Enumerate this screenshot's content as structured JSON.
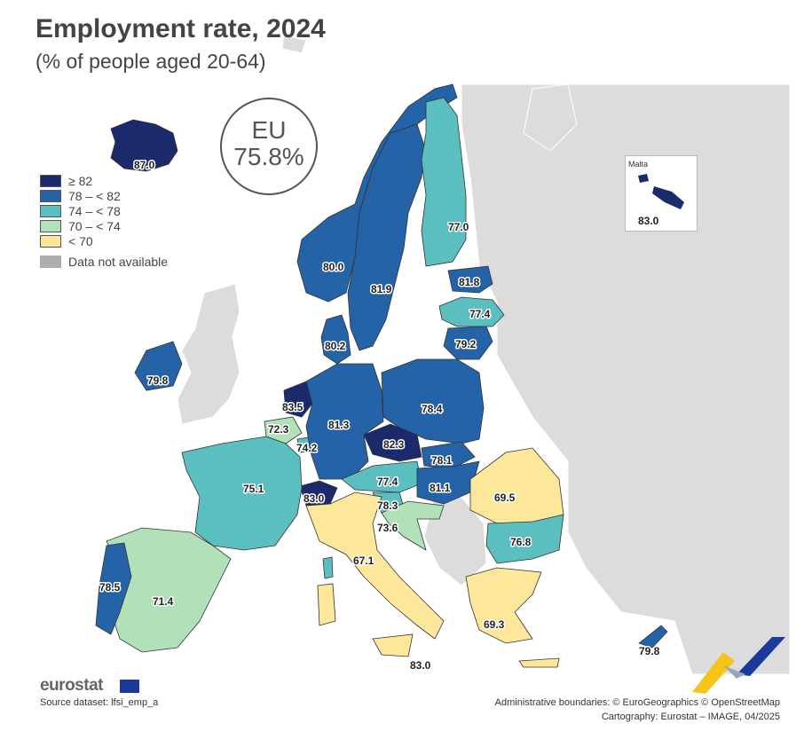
{
  "header": {
    "title": "Employment rate, 2024",
    "subtitle": "(% of people aged 20-64)"
  },
  "eu_total": {
    "label": "EU",
    "value": "75.8%"
  },
  "colors": {
    "ge82": "#1b2a6b",
    "78_82": "#2563a8",
    "74_78": "#5bbfbf",
    "70_74": "#b2e0b8",
    "lt70": "#fde79a",
    "na": "#adadad",
    "nonEU": "#dcdcdc",
    "sea": "#ffffff"
  },
  "legend": {
    "items": [
      {
        "label": "≥ 82",
        "color": "#1b2a6b"
      },
      {
        "label": "78 – < 82",
        "color": "#2563a8"
      },
      {
        "label": "74 – < 78",
        "color": "#5bbfbf"
      },
      {
        "label": "70 – < 74",
        "color": "#b2e0b8"
      },
      {
        "label": "< 70",
        "color": "#fde79a"
      }
    ],
    "na_label": "Data not available",
    "na_color": "#adadad"
  },
  "values": {
    "iceland": "87.0",
    "norway": "80.0",
    "sweden": "81.9",
    "finland": "77.0",
    "estonia": "81.8",
    "latvia": "77.4",
    "lithuania": "79.2",
    "denmark": "80.2",
    "ireland": "79.8",
    "netherlands": "83.5",
    "belgium": "72.3",
    "luxembourg": "74.2",
    "germany": "81.3",
    "poland": "78.4",
    "czechia": "82.3",
    "slovakia": "78.1",
    "austria": "77.4",
    "hungary": "81.1",
    "switzerland": "83.0",
    "slovenia": "78.3",
    "croatia": "73.6",
    "france": "75.1",
    "italy": "67.1",
    "romania": "69.5",
    "bulgaria": "76.8",
    "greece": "69.3",
    "spain": "71.4",
    "portugal": "78.5",
    "malta_main": "83.0",
    "cyprus": "79.8"
  },
  "malta_inset": {
    "title": "Malta",
    "value": "83.0"
  },
  "footer": {
    "logo_text": "eurostat",
    "source": "Source dataset: lfsi_emp_a",
    "admin": "Administrative boundaries: © EuroGeographics © OpenStreetMap",
    "cartography": "Cartography: Eurostat – IMAGE, 04/2025"
  }
}
